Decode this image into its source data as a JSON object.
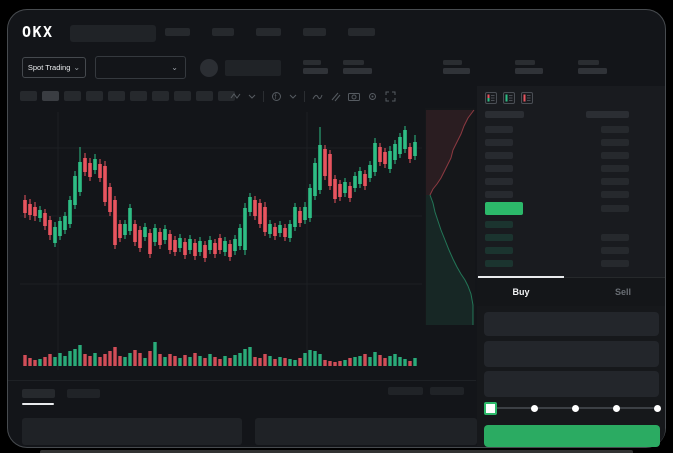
{
  "brand": {
    "logo_text": "OKX"
  },
  "header": {
    "nav_placeholder_count": 5,
    "market_type_label": "Spot Trading",
    "stat_group_count": 5
  },
  "chart_toolbar": {
    "timeframe_placeholder_count": 10,
    "icons": [
      "chart-style-icon",
      "chevron-down-icon",
      "indicator-icon",
      "chevron-down-icon",
      "line-style-icon",
      "compare-icon",
      "camera-icon",
      "settings-icon",
      "fullscreen-icon"
    ]
  },
  "order_book": {
    "view_icons": [
      "book-combined-icon",
      "book-bids-icon",
      "book-asks-icon"
    ],
    "ask_rows": 6,
    "bid_rows": 4,
    "last_price_direction": "up"
  },
  "trade_panel": {
    "buy_tab_label": "Buy",
    "sell_tab_label": "Sell",
    "active_tab": "Buy",
    "field_count": 3,
    "slider_stops": 5,
    "slider_active_stop": 0
  },
  "bottom_panel": {
    "tab_placeholder_count": 2,
    "right_placeholder_count": 2,
    "row_placeholder_count": 2
  },
  "colors": {
    "up": "#2ebd85",
    "down": "#e8545f",
    "buy_button": "#2bab62",
    "last_price_bar": "#2cb96a",
    "grid": "#1d2024",
    "window_bg": "#131519",
    "panel_bg": "#16181b"
  },
  "chart_data": {
    "type": "candlestick",
    "title": "",
    "xlabel": "",
    "ylabel": "",
    "axis_labels_visible": false,
    "units": "screen pixels; skeleton chart shows no numeric axis labels",
    "x_start": 25,
    "x_step": 5,
    "candles": [
      [
        195,
        200,
        213,
        218,
        "r"
      ],
      [
        199,
        204,
        215,
        220,
        "r"
      ],
      [
        202,
        207,
        216,
        221,
        "r"
      ],
      [
        206,
        210,
        218,
        222,
        "g"
      ],
      [
        209,
        213,
        226,
        230,
        "r"
      ],
      [
        216,
        220,
        235,
        240,
        "r"
      ],
      [
        222,
        227,
        243,
        247,
        "g"
      ],
      [
        217,
        221,
        236,
        240,
        "g"
      ],
      [
        212,
        216,
        230,
        234,
        "g"
      ],
      [
        196,
        200,
        224,
        228,
        "g"
      ],
      [
        171,
        176,
        205,
        209,
        "g"
      ],
      [
        147,
        162,
        192,
        196,
        "g"
      ],
      [
        153,
        158,
        172,
        176,
        "r"
      ],
      [
        158,
        163,
        177,
        181,
        "r"
      ],
      [
        154,
        159,
        170,
        174,
        "g"
      ],
      [
        159,
        164,
        178,
        182,
        "r"
      ],
      [
        161,
        166,
        202,
        206,
        "r"
      ],
      [
        183,
        187,
        212,
        216,
        "r"
      ],
      [
        196,
        200,
        245,
        249,
        "r"
      ],
      [
        220,
        224,
        238,
        242,
        "r"
      ],
      [
        220,
        224,
        235,
        239,
        "g"
      ],
      [
        204,
        208,
        231,
        235,
        "g"
      ],
      [
        220,
        224,
        242,
        246,
        "r"
      ],
      [
        226,
        230,
        248,
        252,
        "r"
      ],
      [
        223,
        227,
        237,
        241,
        "g"
      ],
      [
        229,
        233,
        254,
        258,
        "r"
      ],
      [
        224,
        228,
        242,
        246,
        "g"
      ],
      [
        228,
        232,
        245,
        249,
        "r"
      ],
      [
        225,
        229,
        240,
        244,
        "g"
      ],
      [
        230,
        234,
        250,
        254,
        "r"
      ],
      [
        236,
        240,
        252,
        256,
        "r"
      ],
      [
        234,
        238,
        248,
        252,
        "g"
      ],
      [
        238,
        242,
        255,
        259,
        "r"
      ],
      [
        235,
        239,
        250,
        254,
        "g"
      ],
      [
        239,
        243,
        256,
        260,
        "r"
      ],
      [
        237,
        241,
        252,
        256,
        "g"
      ],
      [
        241,
        245,
        258,
        262,
        "r"
      ],
      [
        236,
        240,
        250,
        254,
        "g"
      ],
      [
        239,
        243,
        254,
        258,
        "r"
      ],
      [
        234,
        238,
        250,
        254,
        "r"
      ],
      [
        237,
        241,
        252,
        256,
        "g"
      ],
      [
        240,
        244,
        257,
        261,
        "r"
      ],
      [
        235,
        239,
        251,
        255,
        "g"
      ],
      [
        224,
        228,
        246,
        250,
        "g"
      ],
      [
        203,
        208,
        250,
        255,
        "g"
      ],
      [
        193,
        197,
        212,
        216,
        "g"
      ],
      [
        196,
        200,
        216,
        220,
        "r"
      ],
      [
        199,
        203,
        224,
        228,
        "r"
      ],
      [
        202,
        207,
        232,
        236,
        "r"
      ],
      [
        220,
        224,
        234,
        238,
        "g"
      ],
      [
        223,
        227,
        236,
        240,
        "r"
      ],
      [
        221,
        225,
        233,
        237,
        "g"
      ],
      [
        224,
        228,
        237,
        241,
        "r"
      ],
      [
        220,
        224,
        238,
        242,
        "g"
      ],
      [
        203,
        207,
        227,
        231,
        "g"
      ],
      [
        207,
        211,
        223,
        227,
        "r"
      ],
      [
        202,
        207,
        220,
        224,
        "g"
      ],
      [
        184,
        188,
        218,
        222,
        "g"
      ],
      [
        158,
        163,
        196,
        200,
        "g"
      ],
      [
        127,
        145,
        190,
        194,
        "g"
      ],
      [
        145,
        149,
        176,
        180,
        "r"
      ],
      [
        150,
        154,
        186,
        190,
        "r"
      ],
      [
        175,
        179,
        199,
        203,
        "r"
      ],
      [
        180,
        184,
        197,
        201,
        "r"
      ],
      [
        178,
        182,
        193,
        197,
        "g"
      ],
      [
        182,
        186,
        198,
        202,
        "r"
      ],
      [
        172,
        176,
        188,
        192,
        "g"
      ],
      [
        167,
        171,
        184,
        188,
        "g"
      ],
      [
        170,
        174,
        186,
        190,
        "r"
      ],
      [
        161,
        165,
        178,
        182,
        "g"
      ],
      [
        138,
        143,
        172,
        176,
        "g"
      ],
      [
        143,
        147,
        162,
        166,
        "r"
      ],
      [
        148,
        152,
        164,
        168,
        "r"
      ],
      [
        146,
        151,
        169,
        173,
        "g"
      ],
      [
        140,
        144,
        160,
        164,
        "g"
      ],
      [
        133,
        137,
        154,
        158,
        "g"
      ],
      [
        126,
        130,
        149,
        153,
        "g"
      ],
      [
        143,
        147,
        159,
        163,
        "r"
      ],
      [
        135,
        142,
        156,
        160,
        "g"
      ]
    ],
    "volume_baseline_y": 366,
    "volume_heights": [
      11,
      8,
      6,
      7,
      9,
      12,
      9,
      13,
      10,
      15,
      17,
      21,
      12,
      10,
      13,
      9,
      12,
      15,
      19,
      10,
      9,
      13,
      16,
      13,
      8,
      15,
      24,
      12,
      9,
      12,
      10,
      8,
      11,
      9,
      13,
      10,
      8,
      12,
      9,
      7,
      10,
      8,
      11,
      13,
      17,
      19,
      9,
      8,
      12,
      10,
      7,
      9,
      8,
      7,
      6,
      8,
      13,
      16,
      15,
      12,
      6,
      5,
      4,
      5,
      6,
      8,
      9,
      10,
      12,
      9,
      14,
      11,
      8,
      10,
      12,
      9,
      7,
      5,
      8
    ],
    "gridlines_y": [
      148,
      216,
      284
    ],
    "gridlines_x": [
      58,
      307
    ],
    "depth": {
      "x_range": [
        426,
        474
      ],
      "y_range": [
        108,
        325
      ],
      "ask_line": [
        [
          474,
          110
        ],
        [
          468,
          118
        ],
        [
          464,
          126
        ],
        [
          461,
          134
        ],
        [
          457,
          142
        ],
        [
          453,
          150
        ],
        [
          451,
          158
        ],
        [
          447,
          166
        ],
        [
          444,
          172
        ],
        [
          441,
          178
        ],
        [
          437,
          184
        ],
        [
          433,
          189
        ],
        [
          430,
          195
        ]
      ],
      "bid_line": [
        [
          430,
          195
        ],
        [
          433,
          203
        ],
        [
          435,
          212
        ],
        [
          438,
          221
        ],
        [
          441,
          230
        ],
        [
          445,
          240
        ],
        [
          449,
          250
        ],
        [
          453,
          259
        ],
        [
          457,
          267
        ],
        [
          461,
          274
        ],
        [
          465,
          280
        ],
        [
          468,
          286
        ],
        [
          471,
          294
        ],
        [
          473,
          305
        ],
        [
          473,
          325
        ]
      ]
    }
  }
}
